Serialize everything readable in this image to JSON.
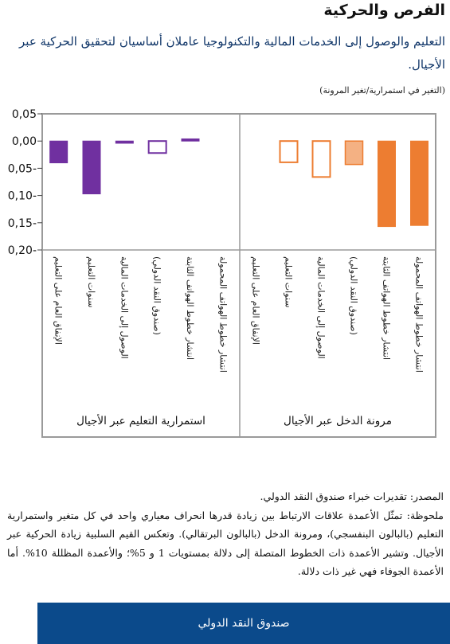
{
  "header": {
    "title": "الفرص والحركية",
    "subtitle": "التعليم والوصول إلى الخدمات المالية والتكنولوجيا عاملان أساسيان لتحقيق الحركية عبر الأجيال.",
    "unit": "(التغير في استمرارية/تغير المرونة)"
  },
  "chart_data": {
    "type": "bar",
    "ylim": [
      -0.2,
      0.05
    ],
    "yticks": [
      0.05,
      0.0,
      -0.05,
      -0.1,
      -0.15,
      -0.2
    ],
    "ytick_labels": [
      "0,05",
      "0,00",
      "0,05-",
      "0,10-",
      "0,15-",
      "0,20-"
    ],
    "grid": false,
    "panels": [
      {
        "group_label": "استمرارية التعليم عبر الأجيال",
        "color": "#7030a0",
        "categories": [
          "الإنفاق العام على التعليم",
          "سنوات التعليم",
          "الوصول إلى الخدمات المالية",
          "(صندوق النقد الدولي)",
          "انتشار خطوط الهواتف الثابتة",
          "انتشار خطوط الهواتف المحمولة"
        ],
        "values": [
          -0.04,
          -0.097,
          -0.004,
          -0.022,
          0.004,
          0.0
        ],
        "fill": [
          "solid",
          "solid",
          "solid",
          "hollow",
          "solid",
          "none"
        ]
      },
      {
        "group_label": "مرونة الدخل عبر الأجيال",
        "color": "#ed7d31",
        "light_color": "#f4b183",
        "categories": [
          "الإنفاق العام على التعليم",
          "سنوات التعليم",
          "الوصول إلى الخدمات المالية",
          "(صندوق النقد الدولي)",
          "انتشار خطوط الهواتف الثابتة",
          "انتشار خطوط الهواتف المحمولة"
        ],
        "values": [
          0.0,
          -0.039,
          -0.066,
          -0.043,
          -0.157,
          -0.155
        ],
        "fill": [
          "none",
          "hollow",
          "hollow",
          "light",
          "solid",
          "solid"
        ]
      }
    ]
  },
  "notes": {
    "source": "المصدر: تقديرات خبراء صندوق النقد الدولي.",
    "note": "ملحوظة: تمثّل الأعمدة علاقات الارتباط بين زيادة قدرها انحراف معياري واحد في كل متغير واستمرارية التعليم (بالبالون البنفسجي)، ومرونة الدخل (بالبالون البرتقالي). وتعكس القيم السلبية زيادة الحركية عبر الأجيال. وتشير الأعمدة ذات الخطوط المتصلة إلى دلالة بمستويات 1 و 5%؛ والأعمدة المظللة 10%. أما الأعمدة الجوفاء فهي غير ذات دلالة."
  },
  "footer": {
    "label": "صندوق النقد الدولي"
  }
}
